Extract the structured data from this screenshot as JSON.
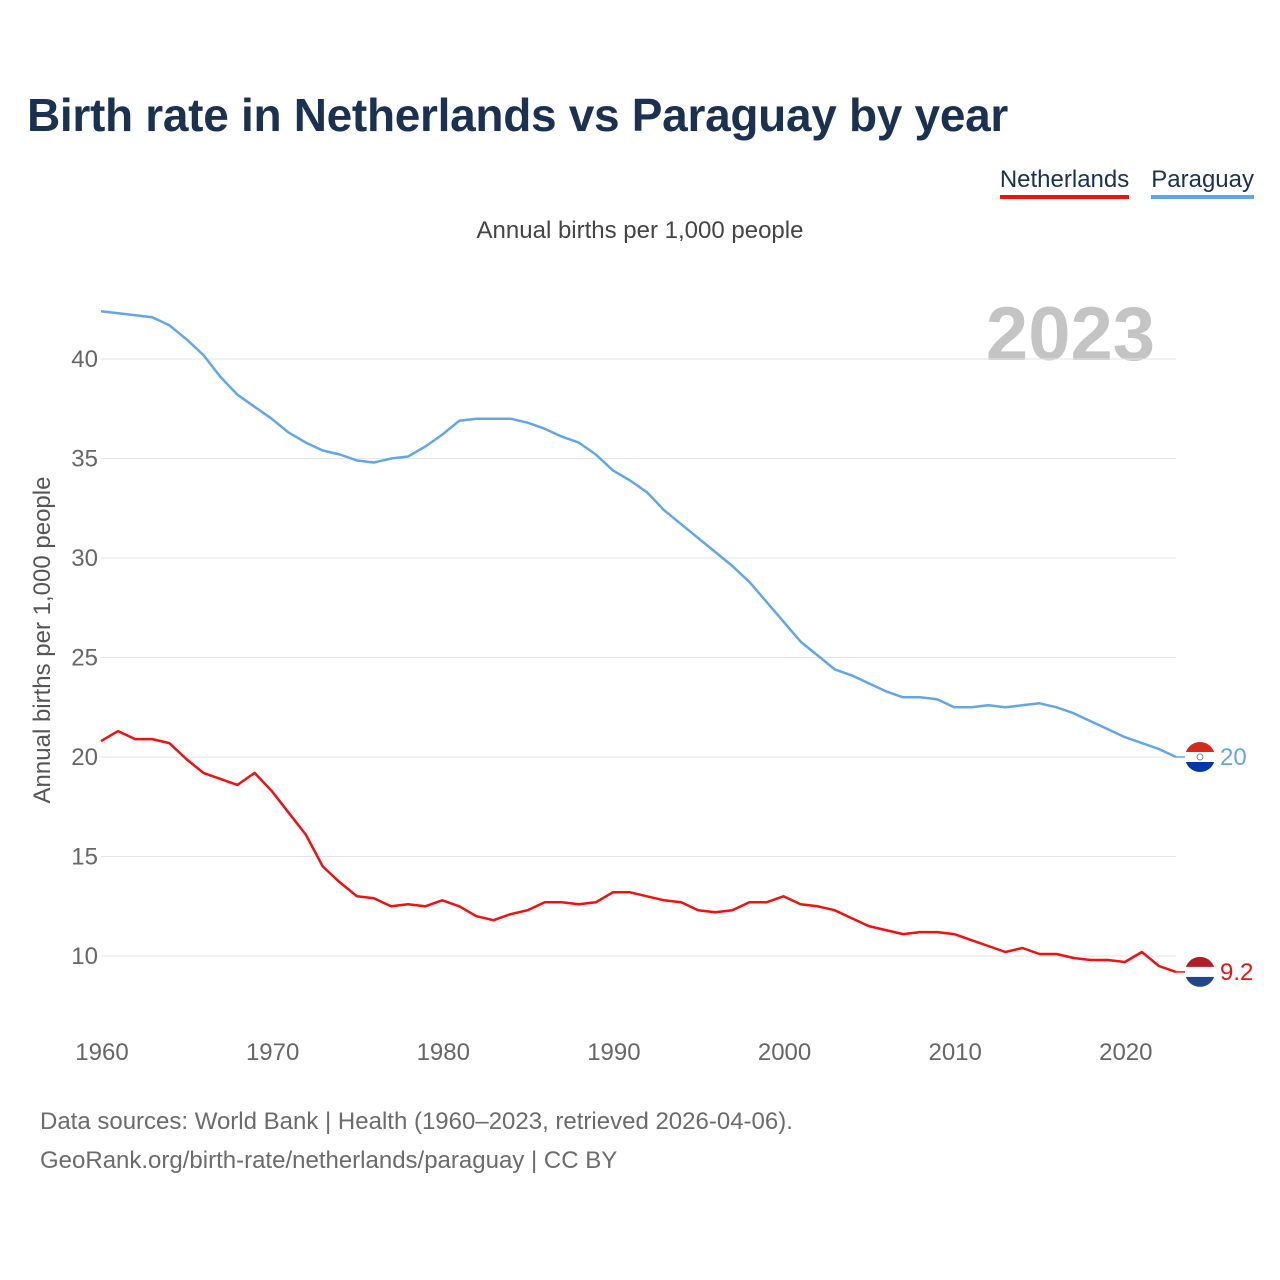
{
  "title": "Birth rate in Netherlands vs Paraguay by year",
  "subtitle": "Annual births per 1,000 people",
  "year_watermark": "2023",
  "footer": {
    "line1": "Data sources: World Bank | Health (1960–2023, retrieved 2026-04-06).",
    "line2": "GeoRank.org/birth-rate/netherlands/paraguay | CC BY"
  },
  "colors": {
    "netherlands": "#ee1111",
    "paraguay": "#63a6e6",
    "title": "#1b3151",
    "grid": "#e6e6e6",
    "watermark": "#c4c4c4"
  },
  "chart_data": {
    "type": "line",
    "title": "Birth rate in Netherlands vs Paraguay by year",
    "xlabel": "",
    "ylabel": "Annual births per 1,000 people",
    "xlim": [
      1960,
      2023
    ],
    "ylim": [
      7,
      43
    ],
    "xticks": [
      1960,
      1970,
      1980,
      1990,
      2000,
      2010,
      2020
    ],
    "yticks": [
      10,
      15,
      20,
      25,
      30,
      35,
      40
    ],
    "grid": true,
    "legend": "top-right",
    "x": [
      1960,
      1961,
      1962,
      1963,
      1964,
      1965,
      1966,
      1967,
      1968,
      1969,
      1970,
      1971,
      1972,
      1973,
      1974,
      1975,
      1976,
      1977,
      1978,
      1979,
      1980,
      1981,
      1982,
      1983,
      1984,
      1985,
      1986,
      1987,
      1988,
      1989,
      1990,
      1991,
      1992,
      1993,
      1994,
      1995,
      1996,
      1997,
      1998,
      1999,
      2000,
      2001,
      2002,
      2003,
      2004,
      2005,
      2006,
      2007,
      2008,
      2009,
      2010,
      2011,
      2012,
      2013,
      2014,
      2015,
      2016,
      2017,
      2018,
      2019,
      2020,
      2021,
      2022,
      2023
    ],
    "series": [
      {
        "name": "Netherlands",
        "color": "#ee1111",
        "end_label": "9.2",
        "values": [
          20.8,
          21.3,
          20.9,
          20.9,
          20.7,
          19.9,
          19.2,
          18.9,
          18.6,
          19.2,
          18.3,
          17.2,
          16.1,
          14.5,
          13.7,
          13.0,
          12.9,
          12.5,
          12.6,
          12.5,
          12.8,
          12.5,
          12.0,
          11.8,
          12.1,
          12.3,
          12.7,
          12.7,
          12.6,
          12.7,
          13.2,
          13.2,
          13.0,
          12.8,
          12.7,
          12.3,
          12.2,
          12.3,
          12.7,
          12.7,
          13.0,
          12.6,
          12.5,
          12.3,
          11.9,
          11.5,
          11.3,
          11.1,
          11.2,
          11.2,
          11.1,
          10.8,
          10.5,
          10.2,
          10.4,
          10.1,
          10.1,
          9.9,
          9.8,
          9.8,
          9.7,
          10.2,
          9.5,
          9.2
        ]
      },
      {
        "name": "Paraguay",
        "color": "#63a6e6",
        "end_label": "20",
        "values": [
          42.4,
          42.3,
          42.2,
          42.1,
          41.7,
          41.0,
          40.2,
          39.1,
          38.2,
          37.6,
          37.0,
          36.3,
          35.8,
          35.4,
          35.2,
          34.9,
          34.8,
          35.0,
          35.1,
          35.6,
          36.2,
          36.9,
          37.0,
          37.0,
          37.0,
          36.8,
          36.5,
          36.1,
          35.8,
          35.2,
          34.4,
          33.9,
          33.3,
          32.4,
          31.7,
          31.0,
          30.3,
          29.6,
          28.8,
          27.8,
          26.8,
          25.8,
          25.1,
          24.4,
          24.1,
          23.7,
          23.3,
          23.0,
          23.0,
          22.9,
          22.5,
          22.5,
          22.6,
          22.5,
          22.6,
          22.7,
          22.5,
          22.2,
          21.8,
          21.4,
          21.0,
          20.7,
          20.4,
          20.0
        ]
      }
    ]
  }
}
